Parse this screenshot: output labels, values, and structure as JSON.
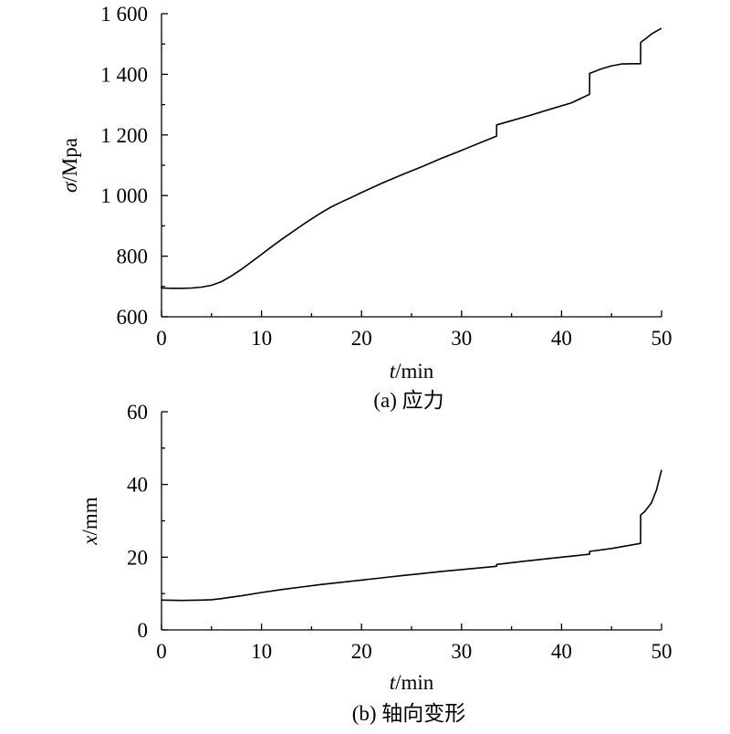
{
  "chart_data": [
    {
      "type": "line",
      "panel": "a",
      "caption": "(a) 应力",
      "ylabel_symbol": "σ",
      "ylabel_unit": "/Mpa",
      "xlabel_symbol": "t",
      "xlabel_unit": "/min",
      "xlim": [
        0,
        50
      ],
      "ylim": [
        600,
        1600
      ],
      "xticks": [
        0,
        10,
        20,
        30,
        40,
        50
      ],
      "xtick_labels": [
        "0",
        "10",
        "20",
        "30",
        "40",
        "50"
      ],
      "yticks": [
        600,
        800,
        1000,
        1200,
        1400,
        1600
      ],
      "ytick_labels": [
        "600",
        "800",
        "1 000",
        "1 200",
        "1 400",
        "1 600"
      ],
      "grid": false,
      "series": [
        {
          "x": [
            0,
            0.01,
            1,
            2,
            3,
            4,
            5,
            6,
            7,
            8,
            9,
            10,
            11,
            12,
            13,
            14,
            15,
            16,
            17,
            18,
            19,
            20,
            22,
            24,
            26,
            28,
            30,
            32,
            33.5,
            33.51,
            35,
            37,
            39,
            41,
            42.8,
            42.81,
            44,
            45,
            46,
            47,
            47.9,
            47.91,
            48.5,
            49,
            50
          ],
          "y": [
            700,
            695,
            694,
            694,
            695,
            698,
            704,
            716,
            735,
            757,
            781,
            806,
            831,
            855,
            878,
            901,
            923,
            944,
            963,
            979,
            994,
            1010,
            1040,
            1068,
            1095,
            1123,
            1149,
            1176,
            1196,
            1233,
            1247,
            1266,
            1286,
            1306,
            1334,
            1403,
            1418,
            1428,
            1434,
            1435,
            1435,
            1505,
            1520,
            1533,
            1552
          ]
        }
      ]
    },
    {
      "type": "line",
      "panel": "b",
      "caption": "(b) 轴向变形",
      "ylabel_symbol": "x",
      "ylabel_unit": "/mm",
      "xlabel_symbol": "t",
      "xlabel_unit": "/min",
      "xlim": [
        0,
        50
      ],
      "ylim": [
        0,
        60
      ],
      "xticks": [
        0,
        10,
        20,
        30,
        40,
        50
      ],
      "xtick_labels": [
        "0",
        "10",
        "20",
        "30",
        "40",
        "50"
      ],
      "yticks": [
        0,
        20,
        40,
        60
      ],
      "ytick_labels": [
        "0",
        "20",
        "40",
        "60"
      ],
      "grid": false,
      "series": [
        {
          "x": [
            0,
            2,
            4,
            5,
            6,
            7,
            8,
            10,
            12,
            14,
            16,
            18,
            20,
            22,
            24,
            26,
            28,
            30,
            33.5,
            33.51,
            36,
            38,
            40,
            42.8,
            42.81,
            45,
            47.9,
            47.91,
            48.3,
            49,
            49.5,
            50
          ],
          "y": [
            8.2,
            8.1,
            8.2,
            8.3,
            8.6,
            9.0,
            9.4,
            10.3,
            11.1,
            11.8,
            12.5,
            13.1,
            13.7,
            14.3,
            14.9,
            15.5,
            16.1,
            16.6,
            17.5,
            18.0,
            18.8,
            19.4,
            20.0,
            20.8,
            21.6,
            22.4,
            23.8,
            31.6,
            32.5,
            35.0,
            38.5,
            44.0
          ]
        }
      ]
    }
  ]
}
